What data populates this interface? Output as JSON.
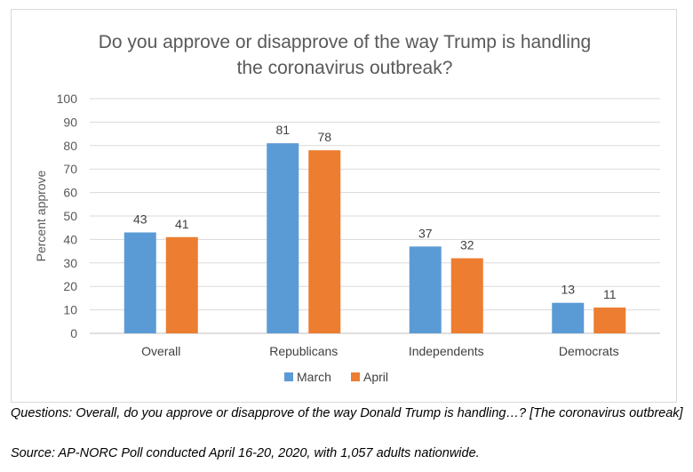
{
  "chart_data": {
    "type": "bar",
    "title_lines": [
      "Do you approve or disapprove of the way Trump is handling",
      "the coronavirus outbreak?"
    ],
    "xlabel": "",
    "ylabel": "Percent approve",
    "ylim": [
      0,
      100
    ],
    "yticks": [
      0,
      10,
      20,
      30,
      40,
      50,
      60,
      70,
      80,
      90,
      100
    ],
    "grid": true,
    "legend_position": "bottom",
    "categories": [
      "Overall",
      "Republicans",
      "Independents",
      "Democrats"
    ],
    "series": [
      {
        "name": "March",
        "values": [
          43,
          81,
          37,
          13
        ],
        "color": "#5b9bd5"
      },
      {
        "name": "April",
        "values": [
          41,
          78,
          32,
          11
        ],
        "color": "#ed7d31"
      }
    ],
    "data_labels": true
  },
  "captions": {
    "questions": "Questions: Overall, do you approve or disapprove of the way Donald Trump is handling…? [The coronavirus outbreak]",
    "source": "Source: AP-NORC Poll conducted April 16-20, 2020, with 1,057 adults nationwide."
  },
  "colors": {
    "axis_text": "#595959",
    "gridline": "#d9d9d9"
  }
}
